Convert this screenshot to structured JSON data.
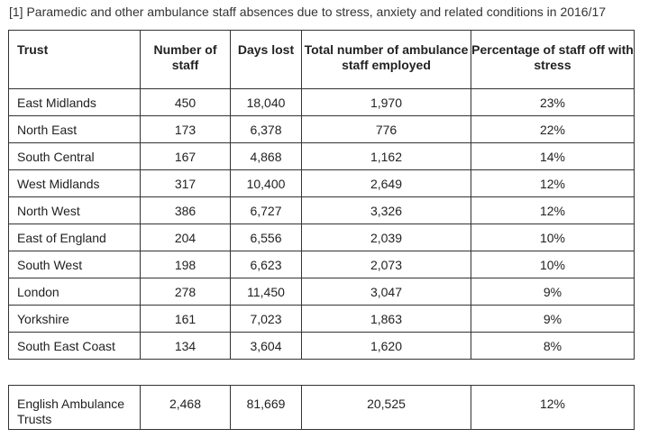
{
  "caption": "[1] Paramedic and other ambulance staff absences due to stress, anxiety and related conditions in 2016/17",
  "headers": [
    "Trust",
    "Number of staff",
    "Days lost",
    "Total number of ambulance staff employed",
    "Percentage of staff off with stress"
  ],
  "rows": [
    [
      "East Midlands",
      "450",
      "18,040",
      "1,970",
      "23%"
    ],
    [
      "North East",
      "173",
      "6,378",
      "776",
      "22%"
    ],
    [
      "South Central",
      "167",
      "4,868",
      "1,162",
      "14%"
    ],
    [
      "West Midlands",
      "317",
      "10,400",
      "2,649",
      "12%"
    ],
    [
      "North West",
      "386",
      "6,727",
      "3,326",
      "12%"
    ],
    [
      "East of England",
      "204",
      "6,556",
      "2,039",
      "10%"
    ],
    [
      "South West",
      "198",
      "6,623",
      "2,073",
      "10%"
    ],
    [
      "London",
      "278",
      "11,450",
      "3,047",
      "9%"
    ],
    [
      "Yorkshire",
      "161",
      "7,023",
      "1,863",
      "9%"
    ],
    [
      "South East Coast",
      "134",
      "3,604",
      "1,620",
      "8%"
    ]
  ],
  "total": [
    "English Ambulance Trusts",
    "2,468",
    "81,669",
    "20,525",
    "12%"
  ]
}
